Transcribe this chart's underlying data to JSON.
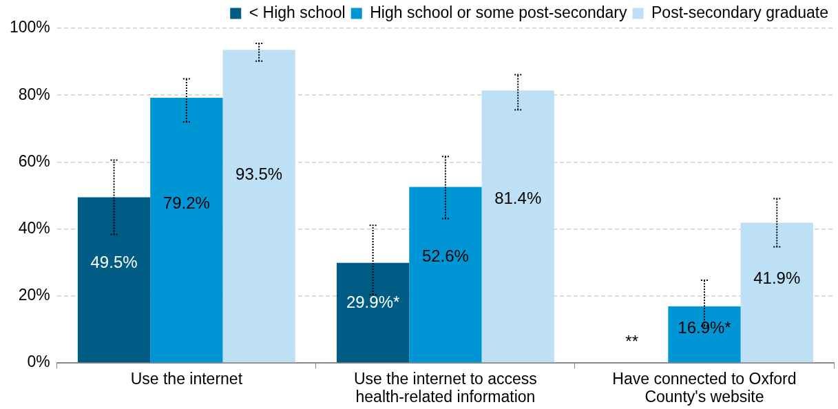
{
  "chart_data": {
    "type": "bar",
    "categories": [
      "Use the internet",
      "Use the internet to access health-related information",
      "Have connected to Oxford County's website"
    ],
    "series": [
      {
        "name": "< High school",
        "color": "#005b85",
        "values": [
          49.5,
          29.9,
          null
        ],
        "errors": [
          [
            38.4,
            60.6
          ],
          [
            20.4,
            41.1
          ],
          null
        ],
        "value_labels": [
          "49.5%",
          "29.9%*",
          "**"
        ]
      },
      {
        "name": "High school or some post-secondary",
        "color": "#0096d6",
        "values": [
          79.2,
          52.6,
          16.9
        ],
        "errors": [
          [
            72.0,
            84.9
          ],
          [
            43.1,
            61.7
          ],
          [
            11.1,
            24.7
          ]
        ],
        "value_labels": [
          "79.2%",
          "52.6%",
          "16.9%*"
        ]
      },
      {
        "name": "Post-secondary graduate",
        "color": "#bde0f5",
        "values": [
          93.5,
          81.4,
          41.9
        ],
        "errors": [
          [
            90.2,
            95.5
          ],
          [
            75.6,
            86.1
          ],
          [
            34.7,
            49.1
          ]
        ],
        "value_labels": [
          "93.5%",
          "81.4%",
          "41.9%"
        ]
      }
    ],
    "ylim": [
      0,
      100
    ],
    "yticks": [
      {
        "value": 0,
        "label": "0%"
      },
      {
        "value": 20,
        "label": "20%"
      },
      {
        "value": 40,
        "label": "40%"
      },
      {
        "value": 60,
        "label": "60%"
      },
      {
        "value": 80,
        "label": "80%"
      },
      {
        "value": 100,
        "label": "100%"
      }
    ],
    "grid": "y",
    "legend": "top"
  }
}
